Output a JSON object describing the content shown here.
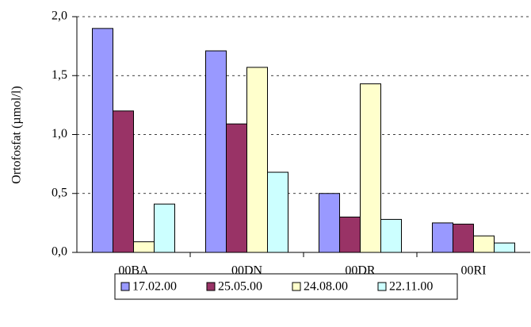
{
  "chart_data": {
    "type": "bar",
    "y_label": "Ortofosfat (µmol/l)",
    "categories": [
      "00BA",
      "00DN",
      "00DR",
      "00RI"
    ],
    "series": [
      {
        "name": "17.02.00",
        "color": "#9999ff",
        "values": [
          1.9,
          1.71,
          0.5,
          0.25
        ]
      },
      {
        "name": "25.05.00",
        "color": "#993366",
        "values": [
          1.2,
          1.09,
          0.3,
          0.24
        ]
      },
      {
        "name": "24.08.00",
        "color": "#ffffcc",
        "values": [
          0.09,
          1.57,
          1.43,
          0.14
        ]
      },
      {
        "name": "22.11.00",
        "color": "#ccffff",
        "values": [
          0.41,
          0.68,
          0.28,
          0.08
        ]
      }
    ],
    "ylim": [
      0,
      2
    ],
    "yticks": [
      {
        "value": 0,
        "label": "0,0"
      },
      {
        "value": 0.5,
        "label": "0,5"
      },
      {
        "value": 1,
        "label": "1,0"
      },
      {
        "value": 1.5,
        "label": "1,5"
      },
      {
        "value": 2,
        "label": "2,0"
      }
    ],
    "grid": true,
    "legend": "bottom"
  }
}
